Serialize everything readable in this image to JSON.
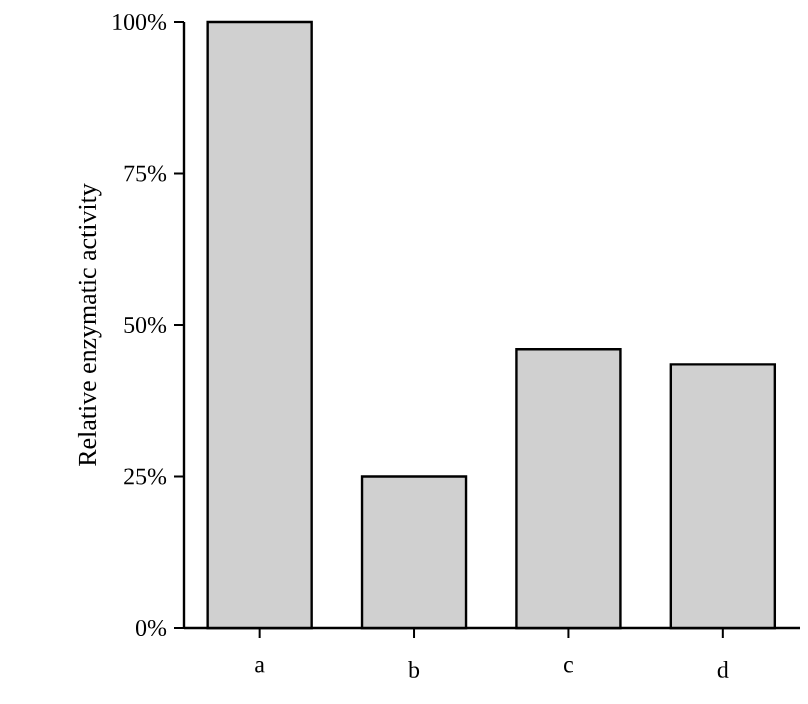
{
  "chart_data": {
    "type": "bar",
    "ylabel": "Relative enzymatic activity",
    "categories": [
      "a",
      "b",
      "c",
      "d"
    ],
    "values": [
      100,
      25,
      46,
      43.5
    ],
    "color": "#d0d0d0",
    "ylim": [
      0,
      100
    ],
    "yticks": [
      {
        "value": 0,
        "label": "0%"
      },
      {
        "value": 25,
        "label": "25%"
      },
      {
        "value": 50,
        "label": "50%"
      },
      {
        "value": 75,
        "label": "75%"
      },
      {
        "value": 100,
        "label": "100%"
      }
    ],
    "grid": false
  }
}
